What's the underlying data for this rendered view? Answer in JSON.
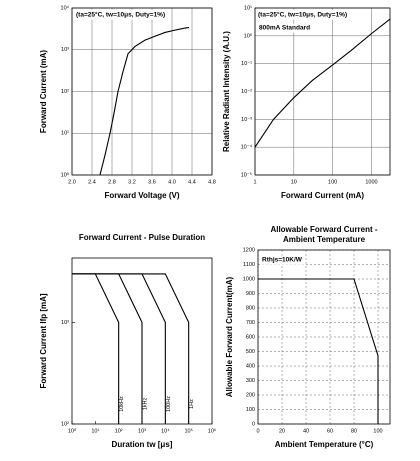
{
  "chart_data": [
    {
      "type": "line",
      "xlabel": "Forward Voltage (V)",
      "ylabel": "Forward Current (mA)",
      "annotations": [
        "(ta=25°C, tw=10μs, Duty=1%)"
      ],
      "xscale": "linear",
      "yscale": "log",
      "grid": true,
      "xlim": [
        2.0,
        4.8
      ],
      "ylim": [
        1,
        10000
      ],
      "xticks": [
        {
          "value": 2.0,
          "label": "2.0"
        },
        2.4,
        2.8,
        3.2,
        3.6,
        {
          "value": 4.0,
          "label": "4.0"
        },
        4.4,
        4.8
      ],
      "yticks": [
        {
          "value": 1,
          "label": "10⁰"
        },
        {
          "value": 10,
          "label": "10¹"
        },
        {
          "value": 100,
          "label": "10²"
        },
        {
          "value": 1000,
          "label": "10³"
        },
        {
          "value": 10000,
          "label": "10⁴"
        }
      ],
      "series": [
        {
          "color": "#000000",
          "x": [
            2.56,
            2.66,
            2.76,
            2.84,
            2.92,
            3.02,
            3.12,
            3.26,
            3.46,
            3.66,
            3.86,
            4.06,
            4.26,
            4.34
          ],
          "values": [
            1,
            3,
            10,
            30,
            100,
            300,
            800,
            1200,
            1700,
            2100,
            2600,
            2950,
            3300,
            3400
          ]
        }
      ]
    },
    {
      "type": "line",
      "xlabel": "Forward Current (mA)",
      "ylabel": "Relative Radiant Intensity (A.U.)",
      "annotations": [
        "(ta=25°C, tw=10μs, Duty=1%)",
        "800mA Standard"
      ],
      "xscale": "log",
      "yscale": "log",
      "grid": true,
      "xlim": [
        1,
        3000
      ],
      "ylim": [
        1e-05,
        10
      ],
      "xticks": [
        1,
        10,
        100,
        1000
      ],
      "yticks": [
        {
          "value": 1e-05,
          "label": "10⁻⁵"
        },
        {
          "value": 0.0001,
          "label": "10⁻⁴"
        },
        {
          "value": 0.001,
          "label": "10⁻³"
        },
        {
          "value": 0.01,
          "label": "10⁻²"
        },
        {
          "value": 0.1,
          "label": "10⁻¹"
        },
        {
          "value": 1,
          "label": "10⁰"
        },
        {
          "value": 10,
          "label": "10¹"
        }
      ],
      "series": [
        {
          "color": "#000000",
          "x": [
            1,
            3,
            10,
            30,
            100,
            300,
            1000,
            3000
          ],
          "values": [
            0.0001,
            0.001,
            0.006,
            0.025,
            0.09,
            0.3,
            1.2,
            4
          ]
        }
      ]
    },
    {
      "type": "line",
      "title": [
        "Forward Current - Pulse Duration"
      ],
      "xlabel": "Duration tw [μs]",
      "ylabel": "Forward Current Ifp [mA]",
      "xscale": "log",
      "yscale": "log",
      "grid": false,
      "xlim": [
        1,
        1000000
      ],
      "ylim": [
        100,
        4300
      ],
      "xticks": [
        {
          "value": 1,
          "label": "10⁰"
        },
        {
          "value": 10,
          "label": "10¹"
        },
        {
          "value": 100,
          "label": "10²"
        },
        {
          "value": 1000,
          "label": "10³"
        },
        {
          "value": 10000,
          "label": "10⁴"
        },
        {
          "value": 100000,
          "label": "10⁵"
        },
        {
          "value": 1000000,
          "label": "10⁶"
        }
      ],
      "yticks": [
        {
          "value": 100,
          "label": "10²"
        },
        {
          "value": 1000,
          "label": "10³"
        }
      ],
      "series": [
        {
          "name": "10kHz",
          "color": "#000000",
          "x": [
            1,
            10,
            100,
            100
          ],
          "values": [
            3000,
            3000,
            1000,
            100
          ]
        },
        {
          "name": "1kHz",
          "color": "#000000",
          "x": [
            1,
            100,
            1000,
            1000
          ],
          "values": [
            3000,
            3000,
            1000,
            100
          ]
        },
        {
          "name": "100Hz",
          "color": "#000000",
          "x": [
            1,
            1000,
            10000,
            10000
          ],
          "values": [
            3000,
            3000,
            1000,
            100
          ]
        },
        {
          "name": "1Hz",
          "color": "#000000",
          "x": [
            1,
            10000,
            100000,
            100000
          ],
          "values": [
            3000,
            3000,
            1000,
            100
          ]
        }
      ]
    },
    {
      "type": "line",
      "title": [
        "Allowable Forward Current -",
        "Ambient Temperature"
      ],
      "xlabel": "Ambient Temperature (°C)",
      "ylabel": "Allowable Forward Current(mA)",
      "annotations": [
        "Rthjs=10K/W"
      ],
      "xscale": "linear",
      "yscale": "linear",
      "grid": true,
      "grid_style": "dashed",
      "xlim": [
        0,
        110
      ],
      "ylim": [
        0,
        1200
      ],
      "xticks": [
        0,
        20,
        40,
        60,
        80,
        100
      ],
      "yticks": [
        0,
        100,
        200,
        300,
        400,
        500,
        600,
        700,
        800,
        900,
        1000,
        1100,
        1200
      ],
      "series": [
        {
          "color": "#000000",
          "x": [
            0,
            80,
            100,
            100
          ],
          "values": [
            1000,
            1000,
            470,
            0
          ]
        }
      ]
    }
  ]
}
